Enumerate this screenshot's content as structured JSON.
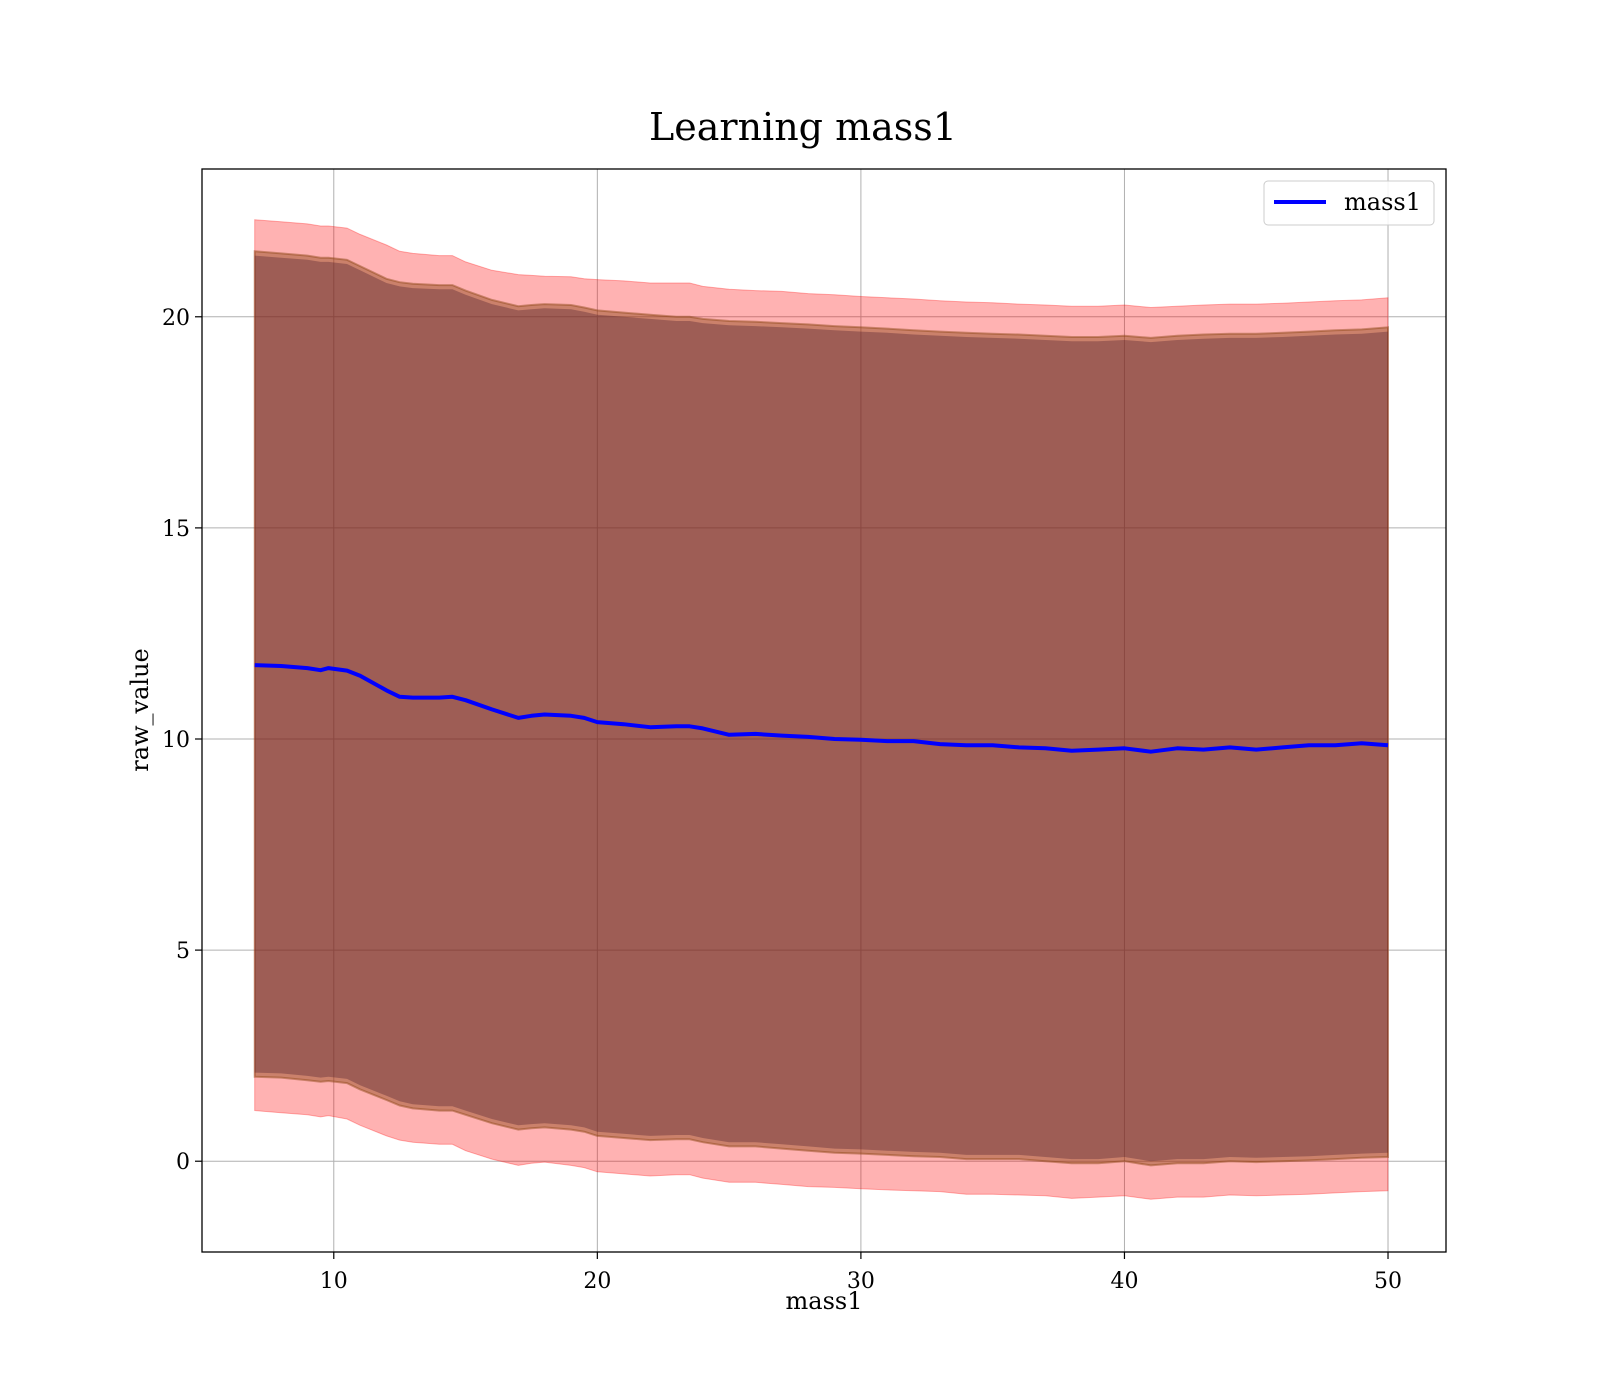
{
  "chart_data": {
    "type": "line",
    "title": "Learning mass1",
    "xlabel": "mass1",
    "ylabel": "raw_value",
    "xlim": [
      5.0,
      52.2
    ],
    "ylim": [
      -2.15,
      23.5
    ],
    "xticks": [
      10,
      20,
      30,
      40,
      50
    ],
    "yticks": [
      0,
      5,
      10,
      15,
      20
    ],
    "grid": true,
    "legend_position": "top-right",
    "colors": {
      "line": "#0000ff",
      "outer_band": "#ff0000",
      "inner_band": "#8b4513",
      "core_band": "#4b1a2e",
      "grid": "#b0b0b0"
    },
    "series": [
      {
        "name": "mass1",
        "x": [
          7.0,
          8.0,
          9.0,
          9.5,
          9.8,
          10.5,
          11.0,
          12.0,
          12.5,
          13.0,
          14.0,
          14.5,
          15.0,
          16.0,
          17.0,
          17.5,
          18.0,
          19.0,
          19.5,
          20.0,
          21.0,
          22.0,
          23.0,
          23.5,
          24.0,
          25.0,
          26.0,
          27.0,
          28.0,
          29.0,
          30.0,
          31.0,
          32.0,
          33.0,
          34.0,
          35.0,
          36.0,
          37.0,
          38.0,
          39.0,
          40.0,
          41.0,
          42.0,
          43.0,
          44.0,
          45.0,
          46.0,
          47.0,
          48.0,
          49.0,
          50.0
        ],
        "y": [
          11.75,
          11.73,
          11.68,
          11.63,
          11.68,
          11.62,
          11.5,
          11.15,
          11.0,
          10.98,
          10.98,
          11.0,
          10.92,
          10.7,
          10.5,
          10.55,
          10.58,
          10.55,
          10.5,
          10.4,
          10.35,
          10.28,
          10.3,
          10.3,
          10.25,
          10.1,
          10.12,
          10.08,
          10.05,
          10.0,
          9.98,
          9.95,
          9.95,
          9.88,
          9.85,
          9.85,
          9.8,
          9.78,
          9.72,
          9.75,
          9.78,
          9.7,
          9.78,
          9.75,
          9.8,
          9.75,
          9.8,
          9.85,
          9.85,
          9.9,
          9.85
        ],
        "outer_upper": [
          22.3,
          22.25,
          22.2,
          22.15,
          22.15,
          22.1,
          21.95,
          21.7,
          21.55,
          21.5,
          21.45,
          21.45,
          21.3,
          21.1,
          21.0,
          20.98,
          20.96,
          20.95,
          20.9,
          20.88,
          20.85,
          20.8,
          20.8,
          20.8,
          20.72,
          20.65,
          20.62,
          20.6,
          20.55,
          20.52,
          20.48,
          20.45,
          20.42,
          20.38,
          20.35,
          20.33,
          20.3,
          20.28,
          20.25,
          20.25,
          20.28,
          20.22,
          20.25,
          20.28,
          20.3,
          20.3,
          20.32,
          20.35,
          20.38,
          20.4,
          20.45
        ],
        "inner_upper": [
          21.55,
          21.5,
          21.45,
          21.4,
          21.4,
          21.35,
          21.2,
          20.9,
          20.82,
          20.78,
          20.75,
          20.75,
          20.62,
          20.4,
          20.25,
          20.28,
          20.3,
          20.28,
          20.22,
          20.15,
          20.1,
          20.05,
          20.0,
          20.0,
          19.95,
          19.9,
          19.88,
          19.85,
          19.82,
          19.78,
          19.75,
          19.72,
          19.68,
          19.65,
          19.62,
          19.6,
          19.58,
          19.55,
          19.52,
          19.52,
          19.55,
          19.5,
          19.55,
          19.58,
          19.6,
          19.6,
          19.62,
          19.65,
          19.68,
          19.7,
          19.75
        ],
        "inner_lower": [
          2.0,
          1.98,
          1.92,
          1.88,
          1.9,
          1.85,
          1.7,
          1.45,
          1.32,
          1.25,
          1.2,
          1.2,
          1.1,
          0.9,
          0.75,
          0.78,
          0.8,
          0.75,
          0.7,
          0.6,
          0.55,
          0.5,
          0.52,
          0.52,
          0.45,
          0.35,
          0.35,
          0.3,
          0.25,
          0.2,
          0.18,
          0.15,
          0.12,
          0.1,
          0.05,
          0.05,
          0.05,
          0.0,
          -0.05,
          -0.05,
          0.0,
          -0.1,
          -0.05,
          -0.05,
          0.0,
          -0.02,
          0.0,
          0.02,
          0.05,
          0.08,
          0.1
        ],
        "outer_lower": [
          1.2,
          1.15,
          1.1,
          1.05,
          1.08,
          1.0,
          0.85,
          0.6,
          0.5,
          0.45,
          0.4,
          0.4,
          0.25,
          0.05,
          -0.1,
          -0.05,
          -0.02,
          -0.1,
          -0.15,
          -0.25,
          -0.3,
          -0.35,
          -0.32,
          -0.32,
          -0.4,
          -0.5,
          -0.5,
          -0.55,
          -0.6,
          -0.62,
          -0.65,
          -0.68,
          -0.7,
          -0.72,
          -0.78,
          -0.78,
          -0.8,
          -0.82,
          -0.88,
          -0.85,
          -0.82,
          -0.9,
          -0.85,
          -0.85,
          -0.8,
          -0.82,
          -0.8,
          -0.78,
          -0.75,
          -0.72,
          -0.7
        ]
      }
    ]
  }
}
